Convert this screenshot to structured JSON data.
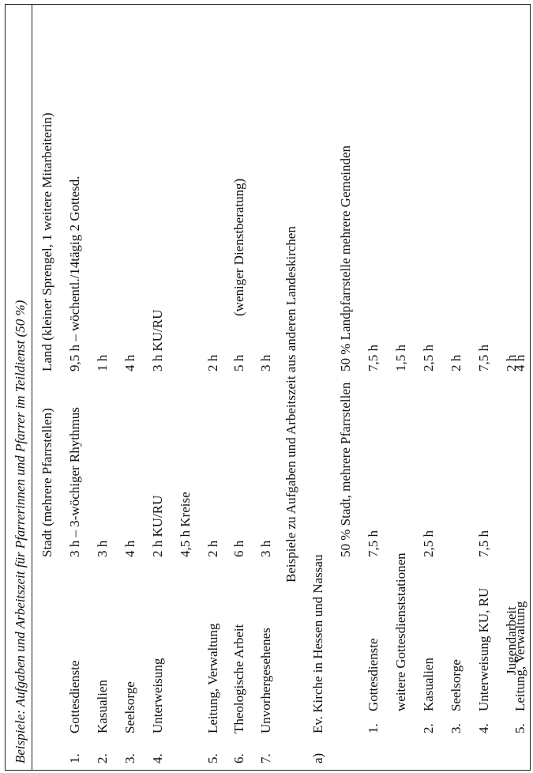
{
  "title": "Beispiele: Aufgaben und Arbeitszeit für Pfarrerinnen und Pfarrer im Teildienst (50 %)",
  "table1": {
    "head_stadt": "Stadt (mehrere Pfarrstellen)",
    "head_land": "Land (kleiner Sprengel, 1 weitere Mitarbeiterin)",
    "rows": [
      {
        "num": "1.",
        "task": "Gottesdienste",
        "stadt": "3 h – 3-wöchiger Rhythmus",
        "land": "9,5 h – wöchentl./14tägig 2 Gottesd."
      },
      {
        "num": "2.",
        "task": "Kasualien",
        "stadt": "3 h",
        "land": "1 h"
      },
      {
        "num": "3.",
        "task": "Seelsorge",
        "stadt": "4 h",
        "land": "4 h"
      },
      {
        "num": "4.",
        "task": "Unterweisung",
        "stadt": "2 h KU/RU",
        "land": "3 h KU/RU"
      },
      {
        "num": "",
        "task": "",
        "stadt": "4,5 h Kreise",
        "land": ""
      },
      {
        "num": "5.",
        "task": "Leitung, Verwaltung",
        "stadt": "2 h",
        "land": "2 h"
      },
      {
        "num": "6.",
        "task": "Theologische Arbeit",
        "stadt": "6 h",
        "land": "5 h",
        "note": "(weniger Dienstberatung)"
      },
      {
        "num": "7.",
        "task": "Unvorhergesehenes",
        "stadt": "3 h",
        "land": "3 h"
      }
    ]
  },
  "section_heading": "Beispiele zu Aufgaben und Arbeitszeit aus anderen Landeskirchen",
  "table2": {
    "label": "a)",
    "church": "Ev. Kirche in Hessen und Nassau",
    "head_stadt": "50 % Stadt, mehrere Pfarrstellen",
    "head_land": "50 % Landpfarrstelle mehrere Gemeinden",
    "rows": [
      {
        "num": "1.",
        "task": "Gottesdienste",
        "stadt": "7,5 h",
        "land": "7,5 h"
      },
      {
        "num": "",
        "task": "weitere Gottesdienststationen",
        "stadt": "",
        "land": "1,5 h"
      },
      {
        "num": "2.",
        "task": "Kasualien",
        "stadt": "2,5 h",
        "land": "2,5 h"
      },
      {
        "num": "3.",
        "task": "Seelsorge",
        "stadt": "",
        "land": "2 h"
      },
      {
        "num": "4.",
        "task": "Unterweisung KU, RU",
        "stadt": "7,5 h",
        "land": "7,5 h"
      },
      {
        "num": "",
        "task": "Jugendarbeit",
        "stadt": "",
        "land": "2 h"
      },
      {
        "num": "5.",
        "task": "Leitung, Verwaltung",
        "stadt": "",
        "land": "4 h"
      }
    ]
  }
}
